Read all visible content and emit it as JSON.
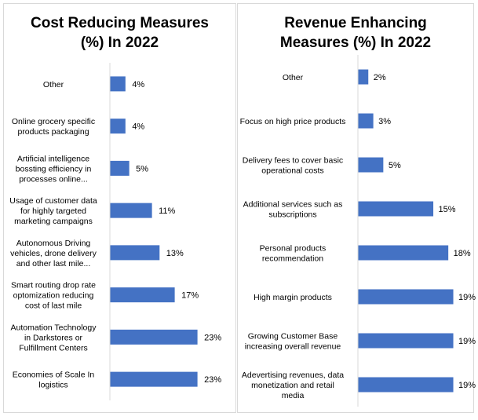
{
  "chart_data": [
    {
      "type": "bar",
      "orientation": "horizontal",
      "title": "Cost Reducing Measures (%) In 2022",
      "title_lines": [
        "Cost Reducing Measures",
        "(%) In 2022"
      ],
      "categories": [
        [
          "Other"
        ],
        [
          "Online grocery specific",
          "products packaging"
        ],
        [
          "Artificial intelligence",
          "bossting efficiency in",
          "processes online..."
        ],
        [
          "Usage of customer data",
          "for highly targeted",
          "marketing campaigns"
        ],
        [
          "Autonomous Driving",
          "vehicles, drone delivery",
          "and other last mile..."
        ],
        [
          "Smart routing drop rate",
          "optomization reducing",
          "cost of last mile"
        ],
        [
          "Automation  Technology",
          "in Darkstores or",
          "Fulfillment Centers"
        ],
        [
          "Economies of Scale In",
          "logistics"
        ]
      ],
      "values": [
        4,
        4,
        5,
        11,
        13,
        17,
        23,
        23
      ],
      "data_labels": [
        "4%",
        "4%",
        "5%",
        "11%",
        "13%",
        "17%",
        "23%",
        "23%"
      ],
      "unit": "%",
      "xlim": [
        0,
        25
      ],
      "grid": false,
      "bar_color": "#4472c4"
    },
    {
      "type": "bar",
      "orientation": "horizontal",
      "title": "Revenue Enhancing Measures (%) In 2022",
      "title_lines": [
        "Revenue Enhancing",
        "Measures (%) In 2022"
      ],
      "categories": [
        [
          "Other"
        ],
        [
          "Focus on high price products"
        ],
        [
          "Delivery fees to cover basic",
          "operational costs"
        ],
        [
          "Additional services such as",
          "subscriptions"
        ],
        [
          "Personal products",
          "recommendation"
        ],
        [
          "High margin products"
        ],
        [
          "Growing Customer Base",
          "increasing overall revenue"
        ],
        [
          "Adevertising revenues, data",
          "monetization and retail",
          "media"
        ]
      ],
      "values": [
        2,
        3,
        5,
        15,
        18,
        19,
        19,
        19
      ],
      "data_labels": [
        "2%",
        "3%",
        "5%",
        "15%",
        "18%",
        "19%",
        "19%",
        "19%"
      ],
      "unit": "%",
      "xlim": [
        0,
        20
      ],
      "grid": false,
      "bar_color": "#4472c4"
    }
  ]
}
